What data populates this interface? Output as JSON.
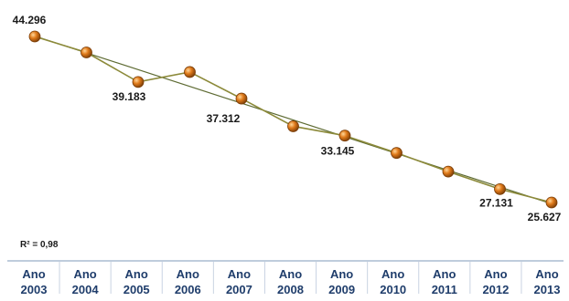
{
  "chart_data": {
    "type": "line",
    "title": "",
    "xlabel": "",
    "ylabel": "",
    "x": [
      "Ano 2003",
      "Ano 2004",
      "Ano 2005",
      "Ano 2006",
      "Ano 2007",
      "Ano 2008",
      "Ano 2009",
      "Ano 2010",
      "Ano 2011",
      "Ano 2012",
      "Ano 2013"
    ],
    "tick_labels": [
      {
        "line1": "Ano",
        "line2": "2003"
      },
      {
        "line1": "Ano",
        "line2": "2004"
      },
      {
        "line1": "Ano",
        "line2": "2005"
      },
      {
        "line1": "Ano",
        "line2": "2006"
      },
      {
        "line1": "Ano",
        "line2": "2007"
      },
      {
        "line1": "Ano",
        "line2": "2008"
      },
      {
        "line1": "Ano",
        "line2": "2009"
      },
      {
        "line1": "Ano",
        "line2": "2010"
      },
      {
        "line1": "Ano",
        "line2": "2011"
      },
      {
        "line1": "Ano",
        "line2": "2012"
      },
      {
        "line1": "Ano",
        "line2": "2013"
      }
    ],
    "series": [
      {
        "values": [
          44296,
          42500,
          39183,
          40300,
          37312,
          34200,
          33145,
          31200,
          29100,
          27131,
          25627
        ]
      }
    ],
    "data_labels": [
      {
        "index": 0,
        "text": "44.296"
      },
      {
        "index": 2,
        "text": "39.183"
      },
      {
        "index": 4,
        "text": "37.312"
      },
      {
        "index": 6,
        "text": "33.145"
      },
      {
        "index": 9,
        "text": "27.131"
      },
      {
        "index": 10,
        "text": "25.627"
      }
    ],
    "trendline": {
      "type": "linear",
      "r2_text": "R² = 0,98"
    },
    "ylim": [
      23000,
      46000
    ],
    "grid": false,
    "legend": "none",
    "colors": {
      "line": "#8c8a3a",
      "trend": "#5e6b33",
      "marker": "#e07a1a",
      "marker_dark": "#7a3d08",
      "axis": "#7f98b8",
      "tick_text": "#1f3d6b"
    }
  }
}
